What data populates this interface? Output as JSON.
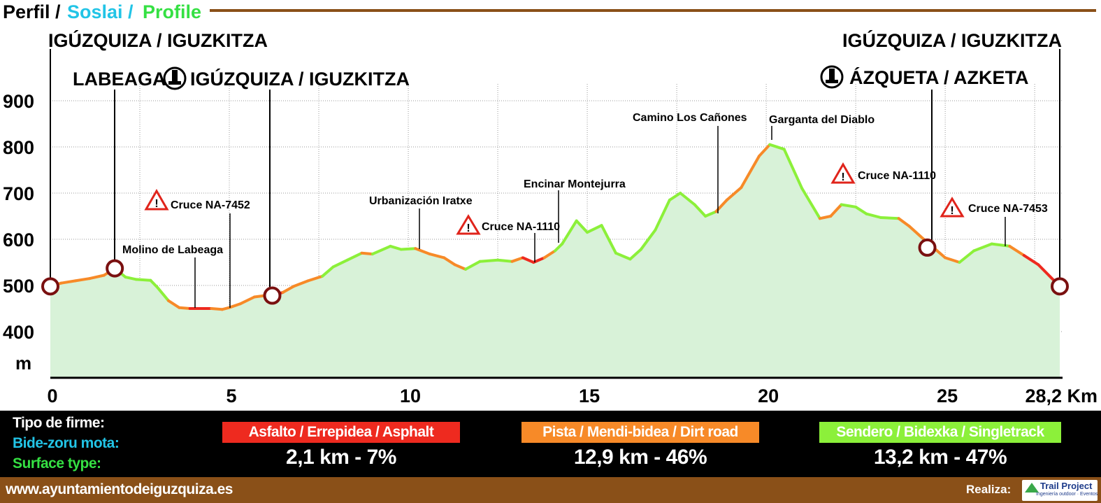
{
  "header": {
    "title_parts": [
      "Perfil /",
      "Soslai /",
      "Profile"
    ],
    "title_colors": [
      "#000000",
      "#22c4e6",
      "#35e043"
    ]
  },
  "chart_data": {
    "type": "area",
    "xlabel": "",
    "ylabel": "m",
    "x_unit": "Km",
    "xlim": [
      0,
      28.2
    ],
    "ylim": [
      350,
      1000
    ],
    "x_ticks": [
      0,
      5,
      10,
      15,
      20,
      25,
      28.2
    ],
    "x_tick_labels": [
      "0",
      "5",
      "10",
      "15",
      "20",
      "25",
      "28,2 Km"
    ],
    "y_ticks": [
      400,
      500,
      600,
      700,
      800,
      900
    ],
    "grid": true,
    "fill_color": "#d8f2d8",
    "surface_colors": {
      "asphalt": "#ee2a1f",
      "dirt": "#f78a28",
      "trail": "#8cf03a"
    },
    "profile": [
      [
        0,
        498,
        "dirt"
      ],
      [
        0.3,
        505,
        "dirt"
      ],
      [
        0.7,
        510,
        "dirt"
      ],
      [
        1.1,
        515,
        "dirt"
      ],
      [
        1.5,
        522,
        "dirt"
      ],
      [
        1.8,
        537,
        "dirt"
      ],
      [
        2.1,
        518,
        "trail"
      ],
      [
        2.4,
        513,
        "trail"
      ],
      [
        2.8,
        511,
        "trail"
      ],
      [
        3.0,
        495,
        "trail"
      ],
      [
        3.3,
        467,
        "trail"
      ],
      [
        3.6,
        452,
        "dirt"
      ],
      [
        3.9,
        450,
        "dirt"
      ],
      [
        4.2,
        450,
        "asphalt"
      ],
      [
        4.5,
        450,
        "asphalt"
      ],
      [
        4.8,
        448,
        "dirt"
      ],
      [
        5.0,
        452,
        "dirt"
      ],
      [
        5.3,
        460,
        "dirt"
      ],
      [
        5.7,
        475,
        "dirt"
      ],
      [
        6.0,
        478,
        "dirt"
      ],
      [
        6.2,
        478,
        "asphalt"
      ],
      [
        6.5,
        485,
        "asphalt"
      ],
      [
        6.8,
        498,
        "dirt"
      ],
      [
        7.2,
        510,
        "dirt"
      ],
      [
        7.6,
        520,
        "dirt"
      ],
      [
        7.9,
        540,
        "trail"
      ],
      [
        8.3,
        555,
        "trail"
      ],
      [
        8.7,
        570,
        "trail"
      ],
      [
        9.0,
        568,
        "dirt"
      ],
      [
        9.5,
        585,
        "trail"
      ],
      [
        9.8,
        578,
        "trail"
      ],
      [
        10.2,
        580,
        "trail"
      ],
      [
        10.6,
        568,
        "dirt"
      ],
      [
        11.0,
        560,
        "dirt"
      ],
      [
        11.3,
        545,
        "dirt"
      ],
      [
        11.6,
        535,
        "dirt"
      ],
      [
        12.0,
        552,
        "trail"
      ],
      [
        12.5,
        555,
        "trail"
      ],
      [
        12.9,
        552,
        "trail"
      ],
      [
        13.2,
        560,
        "dirt"
      ],
      [
        13.5,
        550,
        "asphalt"
      ],
      [
        13.8,
        560,
        "asphalt"
      ],
      [
        14.1,
        575,
        "dirt"
      ],
      [
        14.3,
        590,
        "trail"
      ],
      [
        14.7,
        640,
        "trail"
      ],
      [
        15.0,
        615,
        "trail"
      ],
      [
        15.4,
        630,
        "trail"
      ],
      [
        15.8,
        570,
        "trail"
      ],
      [
        16.2,
        557,
        "trail"
      ],
      [
        16.5,
        578,
        "trail"
      ],
      [
        16.9,
        620,
        "trail"
      ],
      [
        17.3,
        685,
        "trail"
      ],
      [
        17.6,
        700,
        "trail"
      ],
      [
        18.0,
        675,
        "trail"
      ],
      [
        18.3,
        650,
        "trail"
      ],
      [
        18.6,
        660,
        "trail"
      ],
      [
        18.9,
        685,
        "dirt"
      ],
      [
        19.3,
        712,
        "dirt"
      ],
      [
        19.8,
        780,
        "dirt"
      ],
      [
        20.1,
        805,
        "dirt"
      ],
      [
        20.5,
        795,
        "trail"
      ],
      [
        21.0,
        710,
        "trail"
      ],
      [
        21.5,
        645,
        "trail"
      ],
      [
        21.8,
        650,
        "dirt"
      ],
      [
        22.1,
        675,
        "dirt"
      ],
      [
        22.5,
        670,
        "trail"
      ],
      [
        22.8,
        655,
        "trail"
      ],
      [
        23.2,
        647,
        "trail"
      ],
      [
        23.7,
        645,
        "trail"
      ],
      [
        24.0,
        628,
        "dirt"
      ],
      [
        24.4,
        600,
        "dirt"
      ],
      [
        24.7,
        580,
        "dirt"
      ],
      [
        25.0,
        560,
        "dirt"
      ],
      [
        25.4,
        550,
        "dirt"
      ],
      [
        25.8,
        575,
        "trail"
      ],
      [
        26.3,
        590,
        "trail"
      ],
      [
        26.8,
        585,
        "trail"
      ],
      [
        27.2,
        565,
        "dirt"
      ],
      [
        27.6,
        545,
        "asphalt"
      ],
      [
        28.2,
        498,
        "asphalt"
      ]
    ],
    "waypoints": [
      {
        "km": 0,
        "ele": 498
      },
      {
        "km": 1.8,
        "ele": 537
      },
      {
        "km": 6.2,
        "ele": 478
      },
      {
        "km": 24.5,
        "ele": 582
      },
      {
        "km": 28.2,
        "ele": 498
      }
    ]
  },
  "places": {
    "start": "IGÚZQUIZA / IGUZKITZA",
    "labeaga": "LABEAGA",
    "iguzquiza_mid": "IGÚZQUIZA / IGUZKITZA",
    "end": "IGÚZQUIZA / IGUZKITZA",
    "azqueta": "ÁZQUETA / AZKETA"
  },
  "annotations": {
    "molino": "Molino de Labeaga",
    "cruce_7452": "Cruce NA-7452",
    "urbanizacion": "Urbanización Iratxe",
    "cruce_1110_a": "Cruce NA-1110",
    "encinar": "Encinar Montejurra",
    "camino": "Camino Los Cañones",
    "garganta": "Garganta del Diablo",
    "cruce_1110_b": "Cruce NA-1110",
    "cruce_7453": "Cruce NA-7453"
  },
  "legend": {
    "type_lines": [
      "Tipo de firme:",
      "Bide-zoru mota:",
      "Surface type:"
    ],
    "type_colors": [
      "#ffffff",
      "#22c4e6",
      "#35e043"
    ],
    "asphalt_label": "Asfalto / Errepidea / Asphalt",
    "asphalt_value": "2,1 km - 7%",
    "dirt_label": "Pista / Mendi-bidea / Dirt road",
    "dirt_value": "12,9 km - 46%",
    "trail_label": "Sendero / Bidexka / Singletrack",
    "trail_value": "13,2 km - 47%"
  },
  "footer": {
    "website": "www.ayuntamientodeiguzquiza.es",
    "credit_label": "Realiza:",
    "brand": "Trail Project",
    "brand_tagline": "Ingeniería outdoor · Eventos"
  }
}
